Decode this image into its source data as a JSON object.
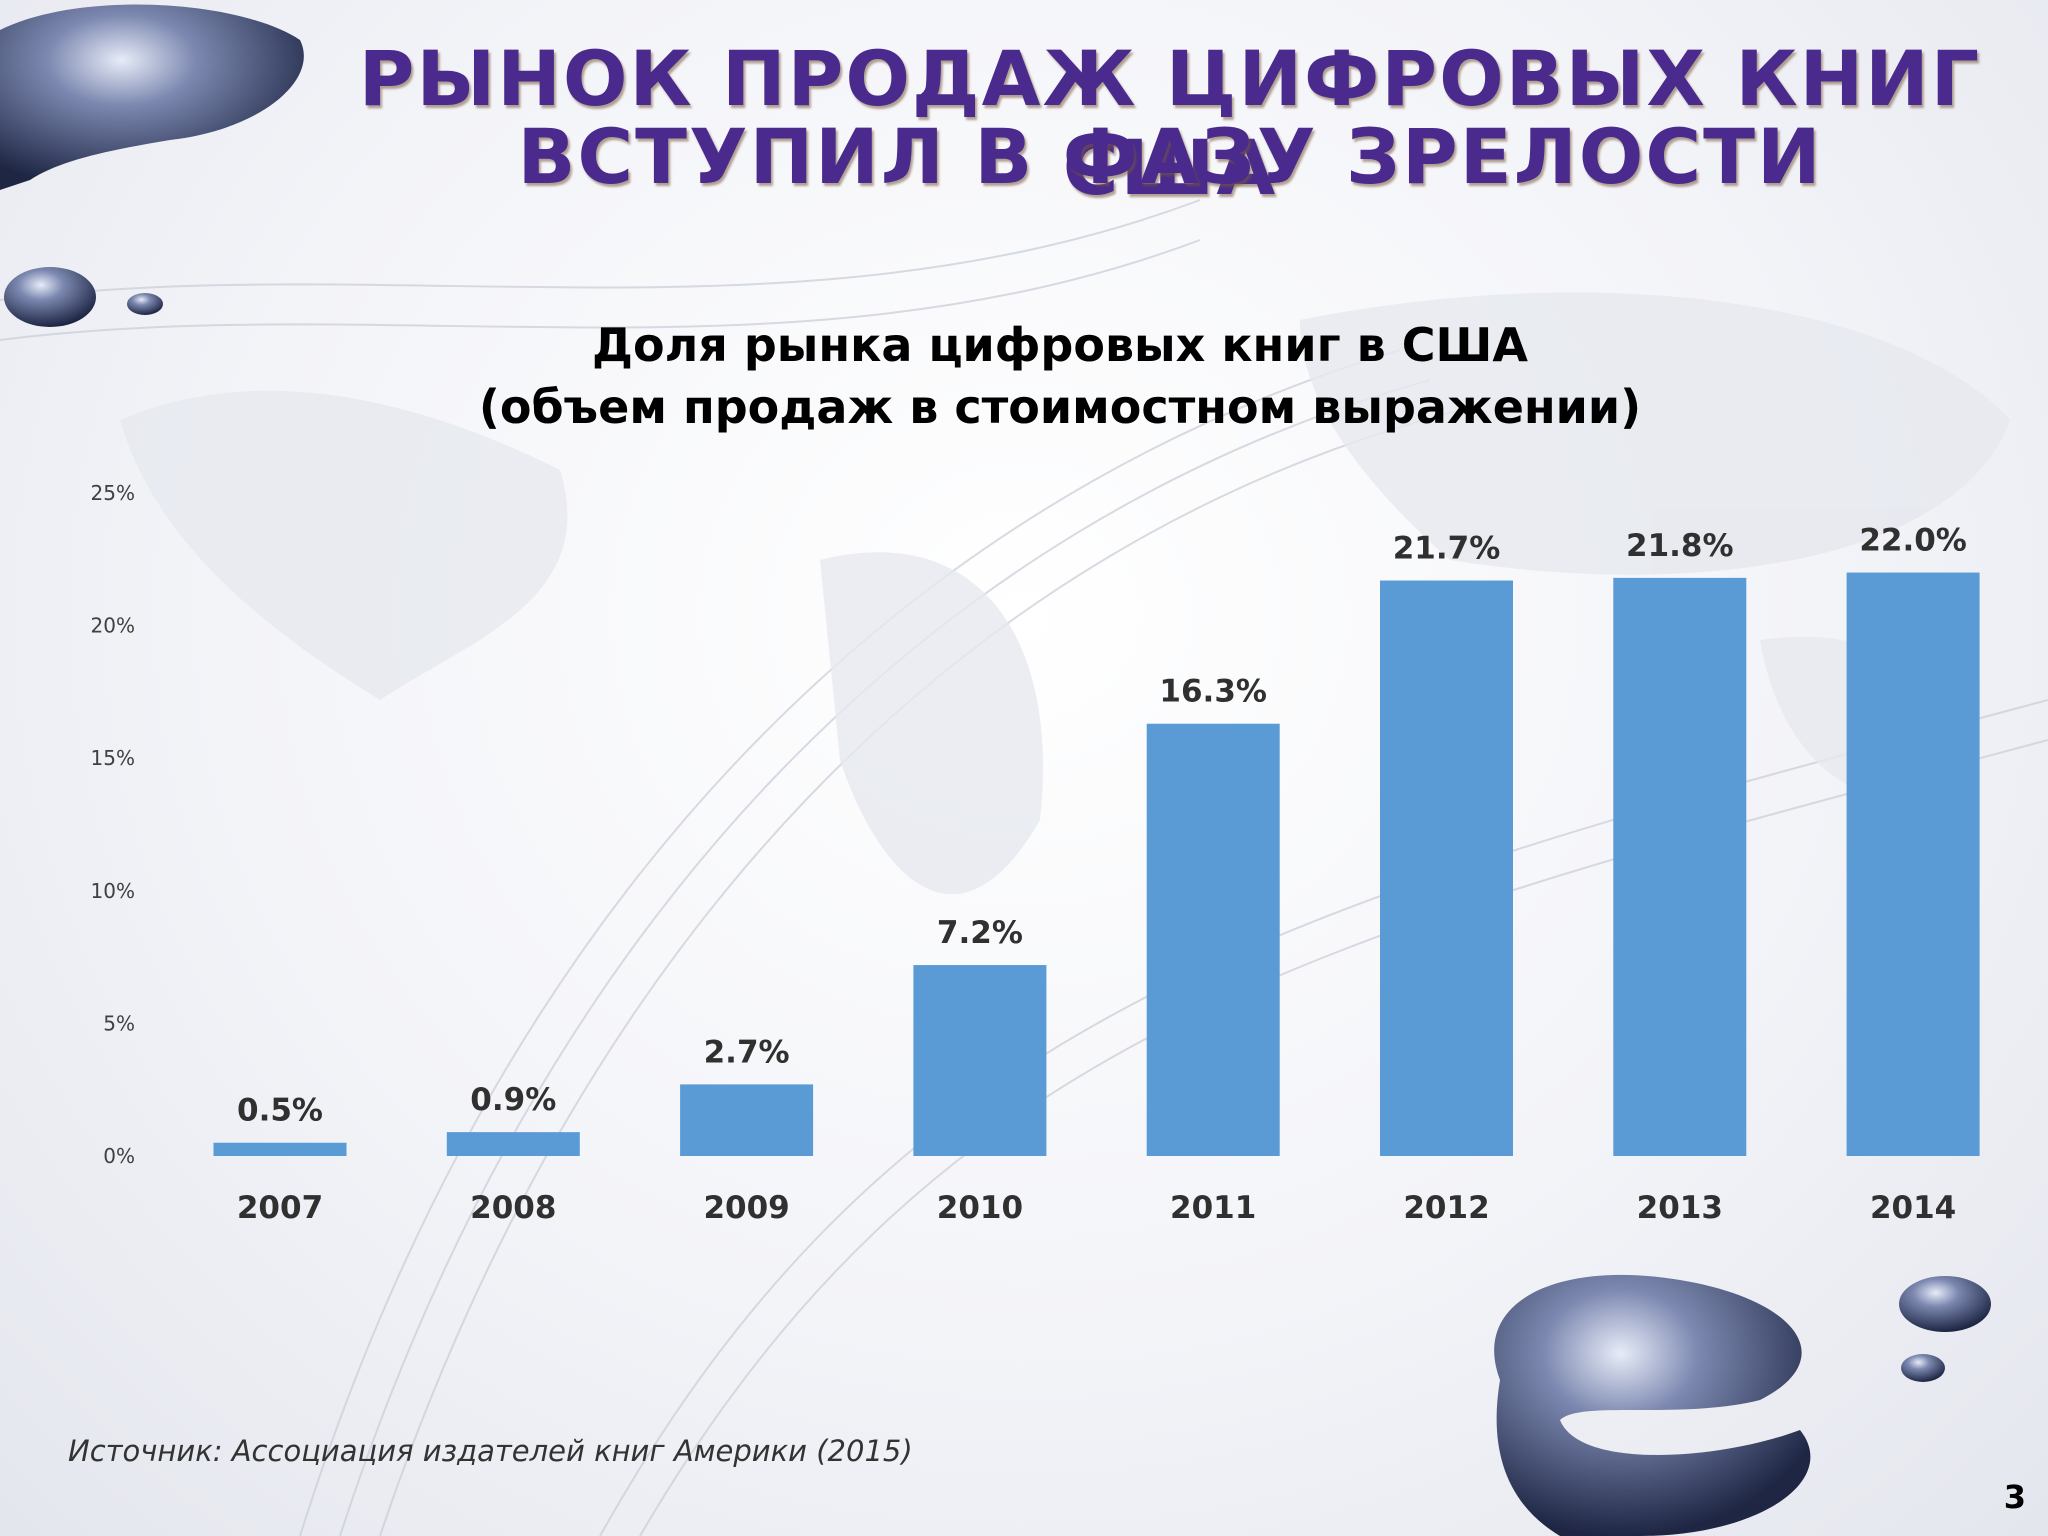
{
  "slide": {
    "title_line1": "РЫНОК ПРОДАЖ ЦИФРОВЫХ КНИГ США",
    "title_line2": "ВСТУПИЛ В ФАЗУ ЗРЕЛОСТИ",
    "source": "Источник: Ассоциация издателей книг Америки (2015)",
    "page_number": "3"
  },
  "colors": {
    "bar": "#5b9bd5",
    "title": "#4a2a8c"
  },
  "chart_data": {
    "type": "bar",
    "title": "Доля рынка цифровых книг в США",
    "subtitle": "(объем продаж в стоимостном выражении)",
    "categories": [
      "2007",
      "2008",
      "2009",
      "2010",
      "2011",
      "2012",
      "2013",
      "2014"
    ],
    "values": [
      0.5,
      0.9,
      2.7,
      7.2,
      16.3,
      21.7,
      21.8,
      22.0
    ],
    "data_labels": [
      "0.5%",
      "0.9%",
      "2.7%",
      "7.2%",
      "16.3%",
      "21.7%",
      "21.8%",
      "22.0%"
    ],
    "y_ticks": [
      "0%",
      "5%",
      "10%",
      "15%",
      "20%",
      "25%"
    ],
    "ylim": [
      0,
      25
    ],
    "legend": "none",
    "grid": false
  }
}
